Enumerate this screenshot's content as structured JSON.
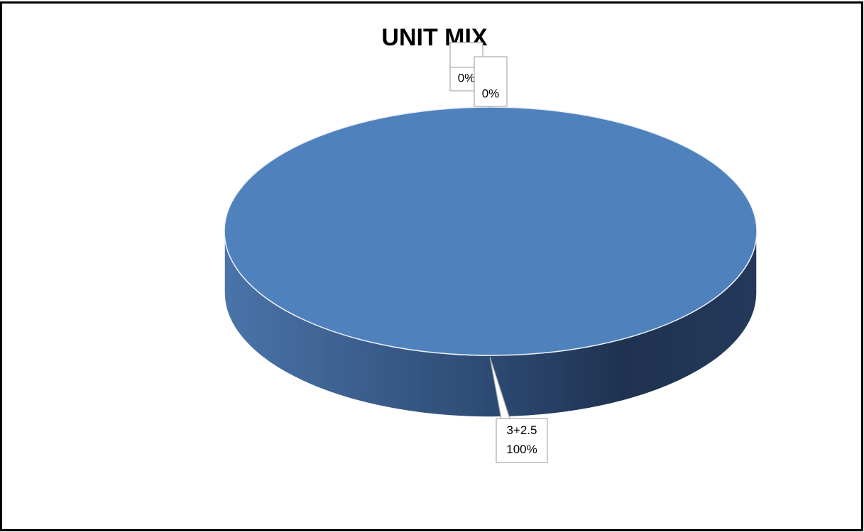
{
  "chart_data": {
    "type": "pie",
    "title": "UNIT MIX",
    "categories": [
      null,
      null,
      "3+2.5"
    ],
    "values": [
      0,
      0,
      100
    ],
    "value_labels": [
      "0%",
      "0%",
      "100%"
    ],
    "color": "#4f81bd"
  }
}
